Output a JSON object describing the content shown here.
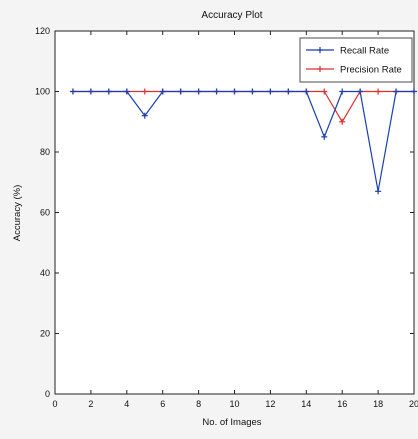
{
  "chart_data": {
    "type": "line",
    "title": "Accuracy Plot",
    "xlabel": "No. of Images",
    "ylabel": "Accuracy (%)",
    "xlim": [
      0,
      20
    ],
    "ylim": [
      0,
      120
    ],
    "x_ticks": [
      0,
      2,
      4,
      6,
      8,
      10,
      12,
      14,
      16,
      18,
      20
    ],
    "y_ticks": [
      0,
      20,
      40,
      60,
      80,
      100,
      120
    ],
    "grid": false,
    "legend_position": "top-right",
    "x": [
      1,
      2,
      3,
      4,
      5,
      6,
      7,
      8,
      9,
      10,
      11,
      12,
      13,
      14,
      15,
      16,
      17,
      18,
      19,
      20
    ],
    "series": [
      {
        "name": "Recall Rate",
        "color": "#1a3fb0",
        "marker": "plus",
        "values": [
          100,
          100,
          100,
          100,
          92,
          100,
          100,
          100,
          100,
          100,
          100,
          100,
          100,
          100,
          85,
          100,
          100,
          67,
          100,
          100
        ]
      },
      {
        "name": "Precision Rate",
        "color": "#e03030",
        "marker": "plus",
        "values": [
          100,
          100,
          100,
          100,
          100,
          100,
          100,
          100,
          100,
          100,
          100,
          100,
          100,
          100,
          100,
          90,
          100,
          100,
          100,
          100
        ]
      }
    ]
  }
}
